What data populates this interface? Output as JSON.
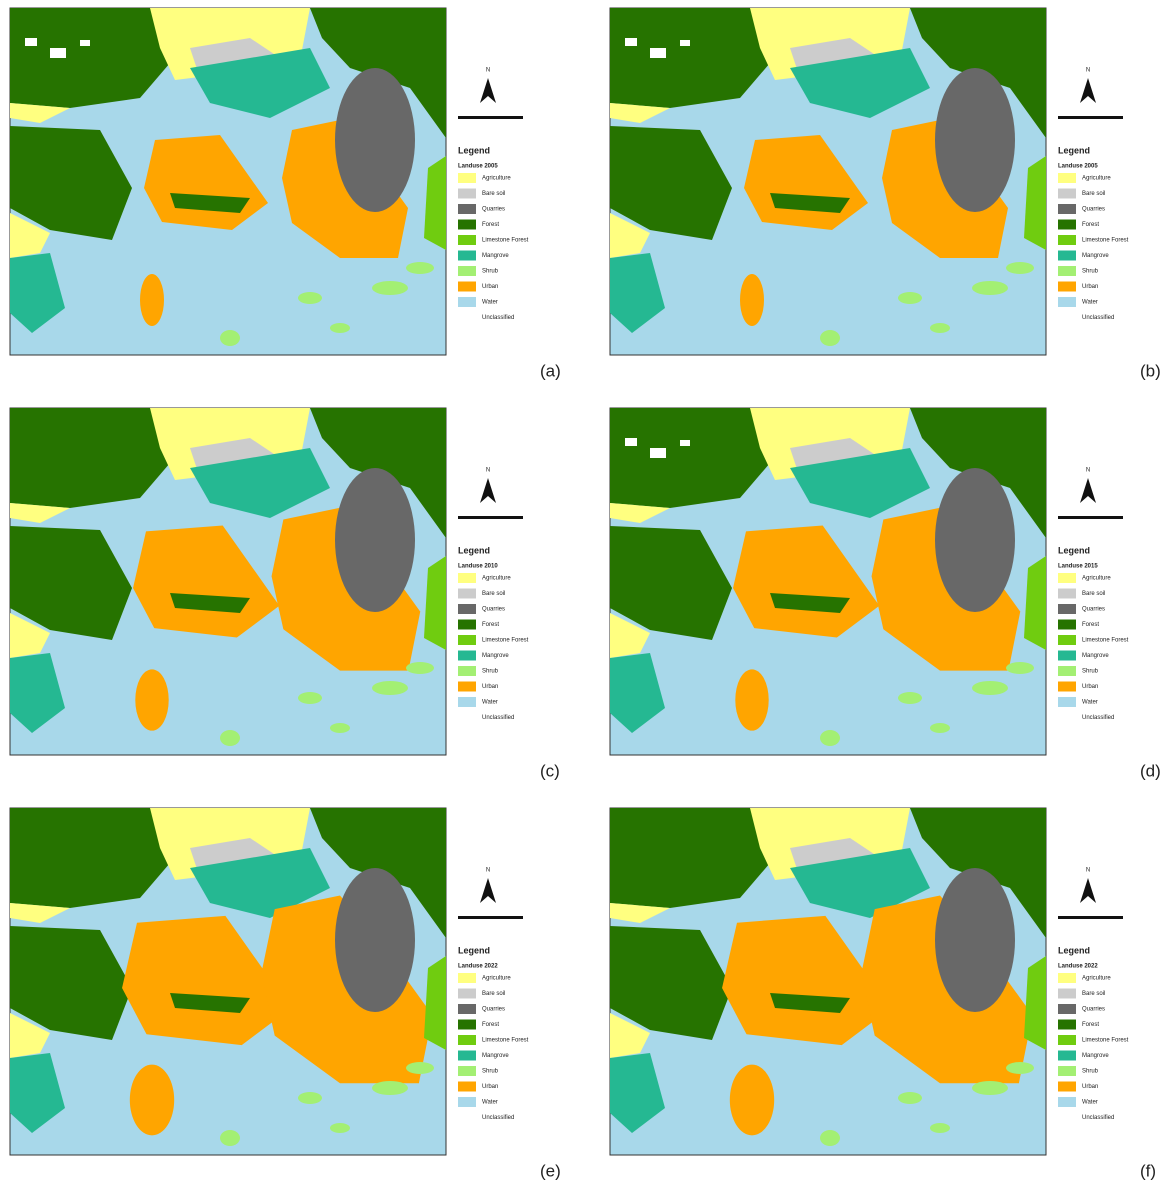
{
  "panels": [
    {
      "label": "(a)",
      "legend_title": "Landuse 2005"
    },
    {
      "label": "(b)",
      "legend_title": "Landuse 2005"
    },
    {
      "label": "(c)",
      "legend_title": "Landuse 2010"
    },
    {
      "label": "(d)",
      "legend_title": "Landuse 2015"
    },
    {
      "label": "(e)",
      "legend_title": "Landuse 2022"
    },
    {
      "label": "(f)",
      "legend_title": "Landuse 2022"
    }
  ],
  "legend": {
    "title": "Legend",
    "items": [
      {
        "name": "Agriculture",
        "color": "#ffff80"
      },
      {
        "name": "Bare soil",
        "color": "#cccccc"
      },
      {
        "name": "Quarries",
        "color": "#686868"
      },
      {
        "name": "Forest",
        "color": "#267300"
      },
      {
        "name": "Limestone Forest",
        "color": "#70cc10"
      },
      {
        "name": "Mangrove",
        "color": "#25b892"
      },
      {
        "name": "Shrub",
        "color": "#a3ef73"
      },
      {
        "name": "Urban",
        "color": "#ffa500"
      },
      {
        "name": "Water",
        "color": "#a8d8ea"
      },
      {
        "name": "Unclassified",
        "color": "#ffffff"
      }
    ]
  },
  "north": "N"
}
